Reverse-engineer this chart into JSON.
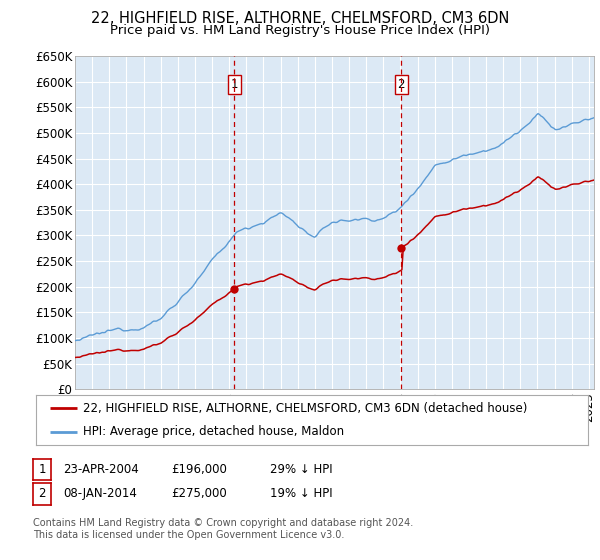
{
  "title": "22, HIGHFIELD RISE, ALTHORNE, CHELMSFORD, CM3 6DN",
  "subtitle": "Price paid vs. HM Land Registry's House Price Index (HPI)",
  "ylabel_ticks": [
    "£0",
    "£50K",
    "£100K",
    "£150K",
    "£200K",
    "£250K",
    "£300K",
    "£350K",
    "£400K",
    "£450K",
    "£500K",
    "£550K",
    "£600K",
    "£650K"
  ],
  "ylim": [
    0,
    650000
  ],
  "xlim_start": 1995.0,
  "xlim_end": 2025.3,
  "background_color": "#dce9f5",
  "grid_color": "#ffffff",
  "hpi_color": "#5b9bd5",
  "price_color": "#c00000",
  "vline_color": "#c00000",
  "sale1_date": 2004.3,
  "sale1_price": 196000,
  "sale1_label": "1",
  "sale2_date": 2014.05,
  "sale2_price": 275000,
  "sale2_label": "2",
  "legend_line1": "22, HIGHFIELD RISE, ALTHORNE, CHELMSFORD, CM3 6DN (detached house)",
  "legend_line2": "HPI: Average price, detached house, Maldon",
  "table_row1": [
    "1",
    "23-APR-2004",
    "£196,000",
    "29% ↓ HPI"
  ],
  "table_row2": [
    "2",
    "08-JAN-2014",
    "£275,000",
    "19% ↓ HPI"
  ],
  "footer": "Contains HM Land Registry data © Crown copyright and database right 2024.\nThis data is licensed under the Open Government Licence v3.0.",
  "title_fontsize": 10.5,
  "subtitle_fontsize": 9.5,
  "tick_fontsize": 8.5,
  "legend_fontsize": 8.5,
  "footer_fontsize": 7.0
}
